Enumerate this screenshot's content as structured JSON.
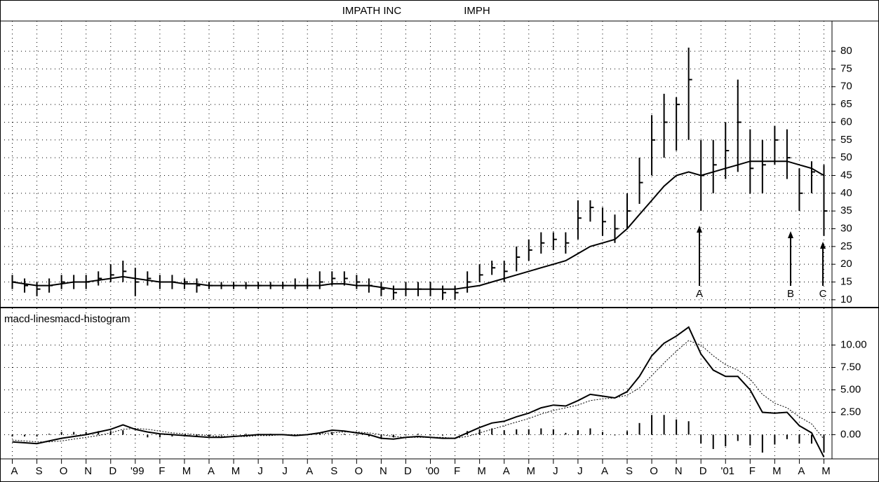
{
  "chart_data": [
    {
      "type": "ohlc",
      "title": "IMPATH INC",
      "symbol": "IMPH",
      "x": [
        0,
        0.5,
        1,
        1.5,
        2,
        2.5,
        3,
        3.5,
        4,
        4.5,
        5,
        5.5,
        6,
        6.5,
        7,
        7.5,
        8,
        8.5,
        9,
        9.5,
        10,
        10.5,
        11,
        11.5,
        12,
        12.5,
        13,
        13.5,
        14,
        14.5,
        15,
        15.5,
        16,
        16.5,
        17,
        17.5,
        18,
        18.5,
        19,
        19.5,
        20,
        20.5,
        21,
        21.5,
        22,
        22.5,
        23,
        23.5,
        24,
        24.5,
        25,
        25.5,
        26,
        26.5,
        27,
        27.5,
        28,
        28.5,
        29,
        29.5,
        30,
        30.5,
        31,
        31.5,
        32,
        32.5,
        33
      ],
      "high": [
        17,
        16,
        15,
        16,
        17,
        17,
        17,
        18,
        20,
        21,
        19,
        18,
        17,
        17,
        16,
        16,
        15,
        15,
        15,
        15,
        15,
        15,
        15,
        16,
        16,
        18,
        18,
        18,
        17,
        16,
        15,
        14,
        15,
        15,
        15,
        14,
        14,
        18,
        20,
        21,
        21,
        25,
        27,
        29,
        29,
        29,
        38,
        38,
        36,
        34,
        40,
        50,
        62,
        68,
        67,
        81,
        55,
        55,
        60,
        72,
        58,
        55,
        59,
        58,
        47,
        49,
        48
      ],
      "low": [
        13,
        12,
        11,
        12,
        13,
        13,
        13,
        14,
        15,
        15,
        11,
        14,
        13,
        13,
        13,
        12,
        13,
        13,
        13,
        13,
        13,
        13,
        13,
        13,
        13,
        13,
        14,
        14,
        13,
        12,
        11,
        10,
        11,
        11,
        11,
        10,
        10,
        12,
        15,
        17,
        15,
        18,
        21,
        23,
        24,
        23,
        27,
        32,
        28,
        26,
        30,
        37,
        45,
        50,
        52,
        55,
        35,
        40,
        44,
        46,
        40,
        40,
        48,
        44,
        35,
        40,
        28
      ],
      "close": [
        15,
        14,
        13,
        14,
        15,
        15,
        15,
        16,
        17,
        18,
        15,
        16,
        15,
        15,
        15,
        14,
        14,
        14,
        14,
        14,
        14,
        14,
        14,
        14,
        14,
        15,
        16,
        16,
        15,
        14,
        13,
        12,
        13,
        13,
        13,
        12,
        12,
        15,
        17,
        19,
        18,
        22,
        24,
        26,
        27,
        26,
        33,
        36,
        32,
        30,
        35,
        43,
        55,
        60,
        65,
        72,
        45,
        48,
        52,
        60,
        47,
        48,
        55,
        50,
        40,
        46,
        35
      ],
      "ma": [
        15,
        14.5,
        14,
        14,
        14.5,
        15,
        15,
        15.5,
        16,
        16.5,
        16,
        15.5,
        15,
        15,
        14.5,
        14.5,
        14,
        14,
        14,
        14,
        14,
        14,
        14,
        14,
        14,
        14,
        14.5,
        14.5,
        14,
        14,
        13.5,
        13,
        13,
        13,
        13,
        13,
        13,
        13.5,
        14,
        15,
        16,
        17,
        18,
        19,
        20,
        21,
        23,
        25,
        26,
        27,
        30,
        34,
        38,
        42,
        45,
        46,
        45,
        46,
        47,
        48,
        49,
        49,
        49,
        49,
        48,
        47,
        45
      ],
      "annotations": [
        "A",
        "B",
        "C"
      ],
      "xlim": [
        -0.5,
        33.3
      ],
      "xticks": [
        0,
        1,
        2,
        3,
        4,
        5,
        6,
        7,
        8,
        9,
        10,
        11,
        12,
        13,
        14,
        15,
        16,
        17,
        18,
        19,
        20,
        21,
        22,
        23,
        24,
        25,
        26,
        27,
        28,
        29,
        30,
        31,
        32,
        33
      ],
      "ylim": [
        8,
        88.5
      ],
      "yticks": [
        10,
        15,
        20,
        25,
        30,
        35,
        40,
        45,
        50,
        55,
        60,
        65,
        70,
        75,
        80
      ],
      "grid": true,
      "color": "#000000"
    },
    {
      "type": "macd",
      "x": [
        0,
        0.5,
        1,
        1.5,
        2,
        2.5,
        3,
        3.5,
        4,
        4.5,
        5,
        5.5,
        6,
        6.5,
        7,
        7.5,
        8,
        8.5,
        9,
        9.5,
        10,
        10.5,
        11,
        11.5,
        12,
        12.5,
        13,
        13.5,
        14,
        14.5,
        15,
        15.5,
        16,
        16.5,
        17,
        17.5,
        18,
        18.5,
        19,
        19.5,
        20,
        20.5,
        21,
        21.5,
        22,
        22.5,
        23,
        23.5,
        24,
        24.5,
        25,
        25.5,
        26,
        26.5,
        27,
        27.5,
        28,
        28.5,
        29,
        29.5,
        30,
        30.5,
        31,
        31.5,
        32,
        32.5,
        33
      ],
      "series": [
        {
          "name": "macd-lines",
          "color": "#000000",
          "values": [
            -0.8,
            -0.9,
            -1,
            -0.7,
            -0.4,
            -0.2,
            0,
            0.3,
            0.6,
            1.1,
            0.6,
            0.3,
            0.1,
            0,
            -0.1,
            -0.2,
            -0.3,
            -0.3,
            -0.2,
            -0.1,
            0,
            0,
            0,
            -0.1,
            0,
            0.2,
            0.5,
            0.4,
            0.2,
            0,
            -0.4,
            -0.5,
            -0.3,
            -0.2,
            -0.3,
            -0.4,
            -0.4,
            0.2,
            0.8,
            1.3,
            1.5,
            2,
            2.4,
            3,
            3.3,
            3.2,
            3.8,
            4.5,
            4.3,
            4.1,
            4.8,
            6.5,
            8.8,
            10.2,
            11,
            12,
            9,
            7.2,
            6.5,
            6.5,
            5,
            2.5,
            2.4,
            2.5,
            1,
            0.2,
            -2.5
          ],
          "signal": [
            -0.6,
            -0.7,
            -0.8,
            -0.8,
            -0.7,
            -0.5,
            -0.3,
            -0.1,
            0.2,
            0.6,
            0.7,
            0.6,
            0.4,
            0.2,
            0.1,
            0,
            -0.1,
            -0.2,
            -0.2,
            -0.2,
            -0.1,
            -0.1,
            0,
            0,
            0,
            0.1,
            0.2,
            0.3,
            0.3,
            0.2,
            0,
            -0.2,
            -0.3,
            -0.3,
            -0.3,
            -0.3,
            -0.4,
            -0.2,
            0.2,
            0.6,
            1,
            1.4,
            1.8,
            2.3,
            2.7,
            3,
            3.3,
            3.8,
            4,
            4.1,
            4.4,
            5.2,
            6.6,
            8,
            9.3,
            10.5,
            10,
            8.8,
            7.8,
            7.2,
            6.2,
            4.5,
            3.5,
            3,
            2,
            1.2,
            -0.5
          ]
        },
        {
          "name": "macd-histogram",
          "color": "#000000",
          "values": [
            -0.2,
            -0.2,
            -0.2,
            0.1,
            0.3,
            0.3,
            0.3,
            0.4,
            0.4,
            0.5,
            -0.1,
            -0.3,
            -0.3,
            -0.2,
            -0.2,
            -0.2,
            -0.2,
            -0.1,
            0,
            0.1,
            0.1,
            0.1,
            0,
            -0.1,
            0,
            0.1,
            0.3,
            0.1,
            -0.1,
            -0.2,
            -0.4,
            -0.3,
            0,
            0.1,
            0,
            -0.1,
            0,
            0.4,
            0.6,
            0.7,
            0.5,
            0.6,
            0.6,
            0.7,
            0.6,
            0.2,
            0.5,
            0.7,
            0.3,
            0,
            0.4,
            1.3,
            2.2,
            2.2,
            1.7,
            1.5,
            -1,
            -1.6,
            -1.3,
            -0.7,
            -1.2,
            -2,
            -1.1,
            -0.5,
            -1,
            -1,
            -2
          ]
        }
      ],
      "xlim": [
        -0.5,
        33.3
      ],
      "xticks": [
        {
          "value": 0,
          "label": "A"
        },
        {
          "value": 1,
          "label": "S"
        },
        {
          "value": 2,
          "label": "O"
        },
        {
          "value": 3,
          "label": "N"
        },
        {
          "value": 4,
          "label": "D"
        },
        {
          "value": 5,
          "label": "'99"
        },
        {
          "value": 6,
          "label": "F"
        },
        {
          "value": 7,
          "label": "M"
        },
        {
          "value": 8,
          "label": "A"
        },
        {
          "value": 9,
          "label": "M"
        },
        {
          "value": 10,
          "label": "J"
        },
        {
          "value": 11,
          "label": "J"
        },
        {
          "value": 12,
          "label": "A"
        },
        {
          "value": 13,
          "label": "S"
        },
        {
          "value": 14,
          "label": "O"
        },
        {
          "value": 15,
          "label": "N"
        },
        {
          "value": 16,
          "label": "D"
        },
        {
          "value": 17,
          "label": "'00"
        },
        {
          "value": 18,
          "label": "F"
        },
        {
          "value": 19,
          "label": "M"
        },
        {
          "value": 20,
          "label": "A"
        },
        {
          "value": 21,
          "label": "M"
        },
        {
          "value": 22,
          "label": "J"
        },
        {
          "value": 23,
          "label": "J"
        },
        {
          "value": 24,
          "label": "A"
        },
        {
          "value": 25,
          "label": "S"
        },
        {
          "value": 26,
          "label": "O"
        },
        {
          "value": 27,
          "label": "N"
        },
        {
          "value": 28,
          "label": "D"
        },
        {
          "value": 29,
          "label": "'01"
        },
        {
          "value": 30,
          "label": "F"
        },
        {
          "value": 31,
          "label": "M"
        },
        {
          "value": 32,
          "label": "A"
        },
        {
          "value": 33,
          "label": "M"
        }
      ],
      "ylim": [
        -2.7,
        14.1
      ],
      "yticks": [
        {
          "value": 0,
          "label": "0.00"
        },
        {
          "value": 2.5,
          "label": "2.50"
        },
        {
          "value": 5,
          "label": "5.00"
        },
        {
          "value": 7.5,
          "label": "7.50"
        },
        {
          "value": 10,
          "label": "10.00"
        }
      ],
      "grid": true
    }
  ]
}
